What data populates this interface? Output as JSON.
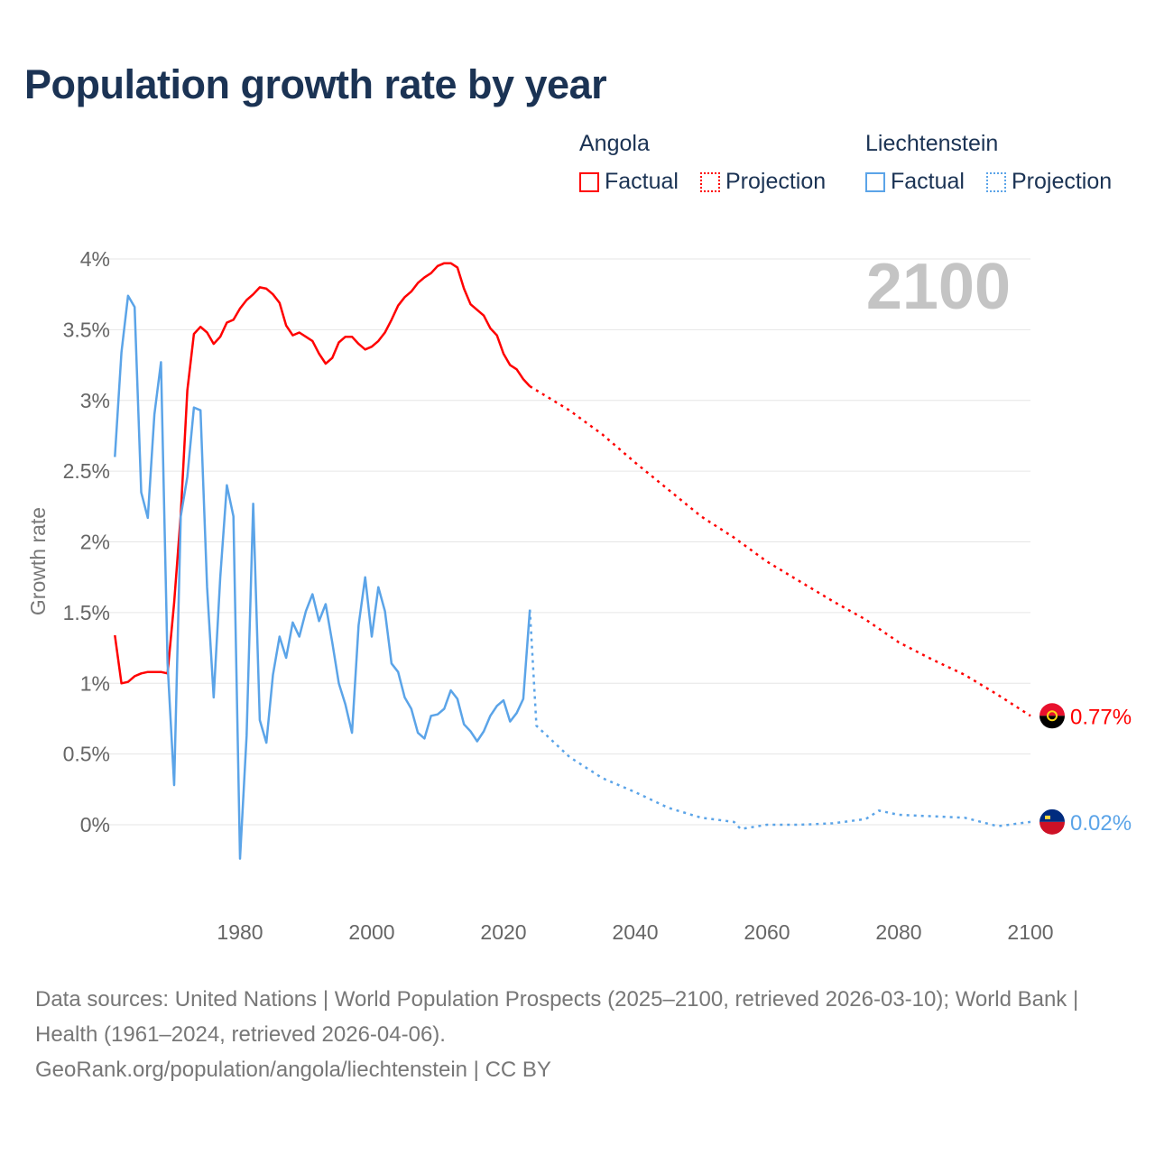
{
  "title": "Population growth rate by year",
  "legend": {
    "groups": [
      {
        "name": "Angola",
        "factual": "Factual",
        "projection": "Projection",
        "color": "#ff0000"
      },
      {
        "name": "Liechtenstein",
        "factual": "Factual",
        "projection": "Projection",
        "color": "#5ba4e8"
      }
    ]
  },
  "footer": {
    "line1": "Data sources: United Nations | World Population Prospects (2025–2100, retrieved 2026-03-10); World Bank | Health (1961–2024, retrieved 2026-04-06).",
    "line2": "GeoRank.org/population/angola/liechtenstein | CC BY"
  },
  "chart_data": {
    "type": "line",
    "title": "Population growth rate by year",
    "ylabel": "Growth rate",
    "xlabel": "",
    "year_overlay": "2100",
    "xlim": [
      1961,
      2100
    ],
    "ylim": [
      -0.5,
      4.2
    ],
    "x_ticks": [
      1980,
      2000,
      2020,
      2040,
      2060,
      2080,
      2100
    ],
    "x_tick_labels": [
      "1980",
      "2000",
      "2020",
      "2040",
      "2060",
      "2080",
      "2100"
    ],
    "y_ticks": [
      0,
      0.5,
      1,
      1.5,
      2,
      2.5,
      3,
      3.5,
      4
    ],
    "y_tick_labels": [
      "0%",
      "0.5%",
      "1%",
      "1.5%",
      "2%",
      "2.5%",
      "3%",
      "3.5%",
      "4%"
    ],
    "grid": true,
    "series": [
      {
        "name": "Angola",
        "color": "#ff0000",
        "end_label": "0.77%",
        "factual": {
          "x": [
            1961,
            1962,
            1963,
            1964,
            1965,
            1966,
            1967,
            1968,
            1969,
            1970,
            1971,
            1972,
            1973,
            1974,
            1975,
            1976,
            1977,
            1978,
            1979,
            1980,
            1981,
            1982,
            1983,
            1984,
            1985,
            1986,
            1987,
            1988,
            1989,
            1990,
            1991,
            1992,
            1993,
            1994,
            1995,
            1996,
            1997,
            1998,
            1999,
            2000,
            2001,
            2002,
            2003,
            2004,
            2005,
            2006,
            2007,
            2008,
            2009,
            2010,
            2011,
            2012,
            2013,
            2014,
            2015,
            2016,
            2017,
            2018,
            2019,
            2020,
            2021,
            2022,
            2023,
            2024
          ],
          "y": [
            1.34,
            1.0,
            1.01,
            1.05,
            1.07,
            1.08,
            1.08,
            1.08,
            1.07,
            1.57,
            2.19,
            3.07,
            3.47,
            3.52,
            3.48,
            3.4,
            3.45,
            3.55,
            3.57,
            3.65,
            3.71,
            3.75,
            3.8,
            3.79,
            3.75,
            3.69,
            3.53,
            3.46,
            3.48,
            3.45,
            3.42,
            3.33,
            3.26,
            3.3,
            3.41,
            3.45,
            3.45,
            3.4,
            3.36,
            3.38,
            3.42,
            3.48,
            3.57,
            3.67,
            3.73,
            3.77,
            3.83,
            3.87,
            3.9,
            3.95,
            3.97,
            3.97,
            3.94,
            3.79,
            3.68,
            3.64,
            3.6,
            3.51,
            3.46,
            3.33,
            3.25,
            3.22,
            3.15,
            3.1
          ]
        },
        "projection": {
          "x": [
            2024,
            2030,
            2035,
            2040,
            2045,
            2050,
            2055,
            2060,
            2065,
            2070,
            2075,
            2080,
            2085,
            2090,
            2095,
            2100
          ],
          "y": [
            3.1,
            2.93,
            2.76,
            2.56,
            2.37,
            2.18,
            2.03,
            1.86,
            1.72,
            1.58,
            1.45,
            1.29,
            1.17,
            1.06,
            0.92,
            0.77
          ]
        }
      },
      {
        "name": "Liechtenstein",
        "color": "#5ba4e8",
        "end_label": "0.02%",
        "factual": {
          "x": [
            1961,
            1962,
            1963,
            1964,
            1965,
            1966,
            1967,
            1968,
            1969,
            1970,
            1971,
            1972,
            1973,
            1974,
            1975,
            1976,
            1977,
            1978,
            1979,
            1980,
            1981,
            1982,
            1983,
            1984,
            1985,
            1986,
            1987,
            1988,
            1989,
            1990,
            1991,
            1992,
            1993,
            1994,
            1995,
            1996,
            1997,
            1998,
            1999,
            2000,
            2001,
            2002,
            2003,
            2004,
            2005,
            2006,
            2007,
            2008,
            2009,
            2010,
            2011,
            2012,
            2013,
            2014,
            2015,
            2016,
            2017,
            2018,
            2019,
            2020,
            2021,
            2022,
            2023,
            2024
          ],
          "y": [
            2.6,
            3.34,
            3.74,
            3.66,
            2.35,
            2.17,
            2.9,
            3.27,
            1.14,
            0.28,
            2.18,
            2.46,
            2.95,
            2.93,
            1.68,
            0.9,
            1.75,
            2.4,
            2.18,
            -0.24,
            0.63,
            2.27,
            0.74,
            0.58,
            1.06,
            1.33,
            1.18,
            1.43,
            1.33,
            1.51,
            1.63,
            1.44,
            1.56,
            1.29,
            1.0,
            0.85,
            0.65,
            1.41,
            1.75,
            1.33,
            1.68,
            1.51,
            1.14,
            1.08,
            0.9,
            0.82,
            0.65,
            0.61,
            0.77,
            0.78,
            0.82,
            0.95,
            0.89,
            0.71,
            0.66,
            0.59,
            0.66,
            0.77,
            0.84,
            0.88,
            0.73,
            0.79,
            0.89,
            1.52
          ]
        },
        "projection": {
          "x": [
            2024,
            2025,
            2030,
            2035,
            2040,
            2045,
            2050,
            2055,
            2056,
            2060,
            2065,
            2070,
            2075,
            2077,
            2080,
            2085,
            2090,
            2095,
            2100
          ],
          "y": [
            1.52,
            0.7,
            0.48,
            0.33,
            0.23,
            0.12,
            0.05,
            0.02,
            -0.03,
            0.0,
            0.0,
            0.01,
            0.04,
            0.1,
            0.07,
            0.06,
            0.05,
            -0.01,
            0.02
          ]
        }
      }
    ]
  }
}
